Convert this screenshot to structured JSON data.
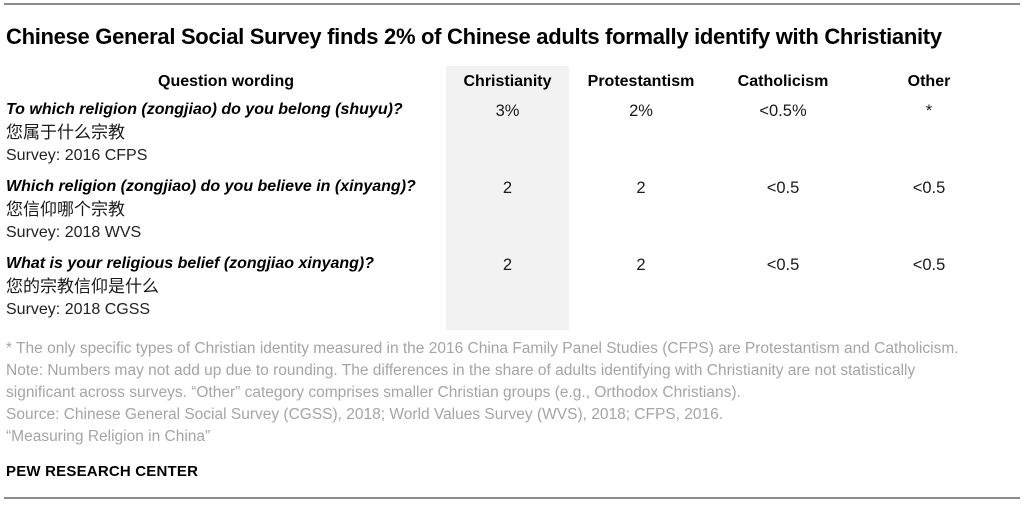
{
  "header": {
    "title": "Chinese General Social Survey finds 2% of Chinese adults formally identify with Christianity"
  },
  "table": {
    "columns": [
      "Question wording",
      "Christianity",
      "Protestantism",
      "Catholicism",
      "Other"
    ],
    "rows": [
      {
        "question": "To which religion (zongjiao) do you belong (shuyu)?",
        "chinese": "您属于什么宗教",
        "survey": "Survey: 2016 CFPS",
        "values": [
          "3%",
          "2%",
          "<0.5%",
          "*"
        ]
      },
      {
        "question": "Which religion (zongjiao) do you believe in (xinyang)?",
        "chinese": "您信仰哪个宗教",
        "survey": "Survey: 2018 WVS",
        "values": [
          "2",
          "2",
          "<0.5",
          "<0.5"
        ]
      },
      {
        "question": "What is your religious belief (zongjiao xinyang)?",
        "chinese": "您的宗教信仰是什么",
        "survey": "Survey: 2018 CGSS",
        "values": [
          "2",
          "2",
          "<0.5",
          "<0.5"
        ]
      }
    ]
  },
  "notes": [
    "* The only specific types of Christian identity measured in the 2016 China Family Panel Studies (CFPS) are Protestantism and Catholicism.",
    "Note: Numbers may not add up due to rounding. The differences in the share of adults identifying with Christianity are not statistically",
    "significant across surveys. “Other” category comprises smaller Christian groups (e.g., Orthodox Christians).",
    "Source: Chinese General Social Survey (CGSS), 2018; World Values Survey (WVS), 2018; CFPS, 2016.",
    "“Measuring Religion in China”"
  ],
  "footer": {
    "brand": "PEW RESEARCH CENTER"
  },
  "colors": {
    "highlight_column": "#f2f2f2",
    "note_text": "#a5a5a5",
    "rule": "#8c8c8c",
    "text": "#000000"
  },
  "chart_data": {
    "type": "table",
    "title": "Chinese General Social Survey finds 2% of Chinese adults formally identify with Christianity",
    "columns": [
      "Question wording",
      "Christianity",
      "Protestantism",
      "Catholicism",
      "Other"
    ],
    "rows": [
      [
        "To which religion (zongjiao) do you belong (shuyu)? 您属于什么宗教 Survey: 2016 CFPS",
        "3%",
        "2%",
        "<0.5%",
        "*"
      ],
      [
        "Which religion (zongjiao) do you believe in (xinyang)? 您信仰哪个宗教 Survey: 2018 WVS",
        "2",
        "2",
        "<0.5",
        "<0.5"
      ],
      [
        "What is your religious belief (zongjiao xinyang)? 您的宗教信仰是什么 Survey: 2018 CGSS",
        "2",
        "2",
        "<0.5",
        "<0.5"
      ]
    ],
    "layout": {
      "highlighted_column": "Christianity",
      "values_in_percent": true
    }
  }
}
